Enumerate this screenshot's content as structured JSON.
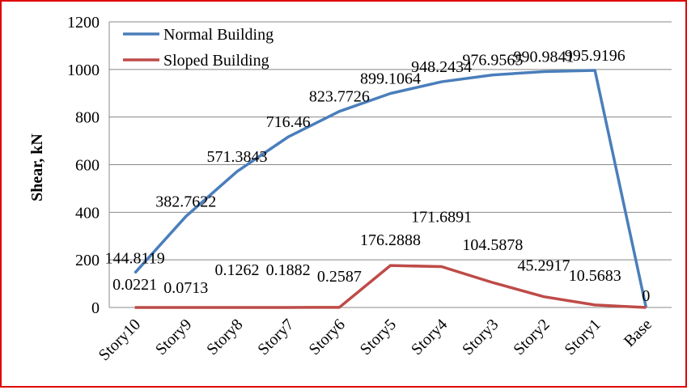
{
  "chart_data": {
    "type": "line",
    "title": "",
    "xlabel": "",
    "ylabel": "Shear, kN",
    "ylim": [
      0,
      1200
    ],
    "yticks": [
      0,
      200,
      400,
      600,
      800,
      1000,
      1200
    ],
    "grid": true,
    "legend_position": "top-left",
    "categories": [
      "Story10",
      "Story9",
      "Story8",
      "Story7",
      "Story6",
      "Story5",
      "Story4",
      "Story3",
      "Story2",
      "Story1",
      "Base"
    ],
    "series": [
      {
        "name": "Normal Building",
        "color": "#4a7ebb",
        "values": [
          144.8119,
          382.7622,
          571.3843,
          716.46,
          823.7726,
          899.1064,
          948.2434,
          976.9565,
          990.9841,
          995.9196,
          0
        ],
        "labels": [
          "144.8119",
          "382.7622",
          "571.3843",
          "716.46",
          "823.7726",
          "899.1064",
          "948.2434",
          "976.9565",
          "990.9841",
          "995.9196",
          "0"
        ]
      },
      {
        "name": "Sloped Building",
        "color": "#be4b48",
        "values": [
          0.0221,
          0.0713,
          0.1262,
          0.1882,
          0.2587,
          176.2888,
          171.6891,
          104.5878,
          45.2917,
          10.5683,
          0
        ],
        "labels": [
          "0.0221",
          "0.0713",
          "0.1262",
          "0.1882",
          "0.2587",
          "176.2888",
          "171.6891",
          "104.5878",
          "45.2917",
          "10.5683",
          ""
        ]
      }
    ]
  }
}
